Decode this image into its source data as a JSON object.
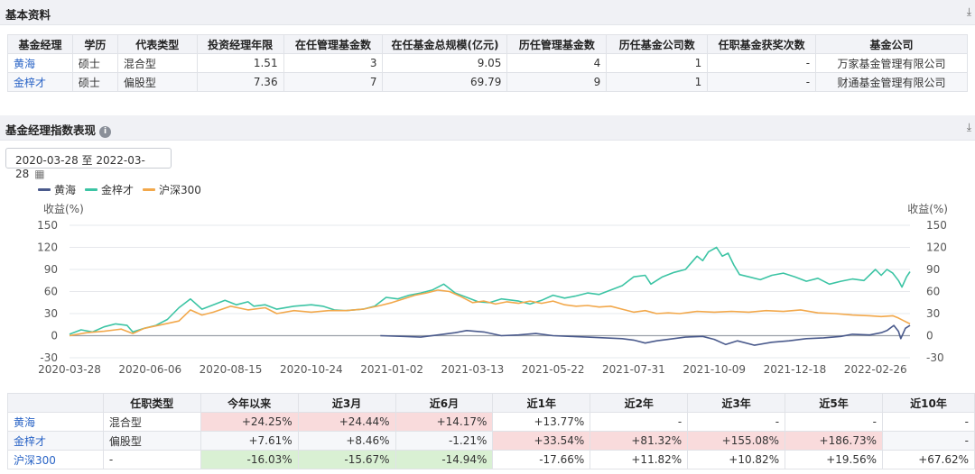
{
  "basic_section": {
    "title": "基本资料",
    "headers": [
      "基金经理",
      "学历",
      "代表类型",
      "投资经理年限",
      "在任管理基金数",
      "在任基金总规模(亿元)",
      "历任管理基金数",
      "历任基金公司数",
      "任职基金获奖次数",
      "基金公司"
    ],
    "rows": [
      [
        "黄海",
        "硕士",
        "混合型",
        "1.51",
        "3",
        "9.05",
        "4",
        "1",
        "-",
        "万家基金管理有限公司"
      ],
      [
        "金梓才",
        "硕士",
        "偏股型",
        "7.36",
        "7",
        "69.79",
        "9",
        "1",
        "-",
        "财通基金管理有限公司"
      ]
    ]
  },
  "index_section": {
    "title": "基金经理指数表现",
    "date_range": "2020-03-28 至 2022-03-28"
  },
  "chart_data": {
    "type": "line",
    "ylabel_left": "收益(%)",
    "ylabel_right": "收益(%)",
    "ylim": [
      -30,
      150
    ],
    "yticks": [
      150,
      120,
      90,
      60,
      30,
      0,
      -30
    ],
    "xticks": [
      "2020-03-28",
      "2020-06-06",
      "2020-08-15",
      "2020-10-24",
      "2021-01-02",
      "2021-03-13",
      "2021-05-22",
      "2021-07-31",
      "2021-10-09",
      "2021-12-18",
      "2022-02-26"
    ],
    "xticks_index": [
      0,
      70,
      140,
      210,
      280,
      350,
      420,
      490,
      560,
      630,
      700
    ],
    "x_range_index": [
      0,
      730
    ],
    "legend_position": "top-left",
    "series": [
      {
        "name": "黄海",
        "color": "#4a5a8c",
        "points": [
          [
            270,
            0
          ],
          [
            290,
            -1
          ],
          [
            305,
            -2
          ],
          [
            320,
            1
          ],
          [
            335,
            4
          ],
          [
            345,
            7
          ],
          [
            360,
            5
          ],
          [
            375,
            0
          ],
          [
            390,
            1
          ],
          [
            405,
            3
          ],
          [
            420,
            0
          ],
          [
            435,
            -1
          ],
          [
            450,
            -2
          ],
          [
            465,
            -3
          ],
          [
            480,
            -4
          ],
          [
            490,
            -6
          ],
          [
            500,
            -10
          ],
          [
            510,
            -7
          ],
          [
            520,
            -5
          ],
          [
            535,
            -2
          ],
          [
            550,
            -1
          ],
          [
            560,
            -5
          ],
          [
            570,
            -12
          ],
          [
            580,
            -7
          ],
          [
            595,
            -13
          ],
          [
            610,
            -9
          ],
          [
            625,
            -7
          ],
          [
            640,
            -4
          ],
          [
            655,
            -3
          ],
          [
            670,
            -1
          ],
          [
            680,
            2
          ],
          [
            695,
            1
          ],
          [
            705,
            4
          ],
          [
            710,
            7
          ],
          [
            716,
            14
          ],
          [
            720,
            6
          ],
          [
            722,
            -4
          ],
          [
            726,
            10
          ],
          [
            730,
            14
          ]
        ]
      },
      {
        "name": "金梓才",
        "color": "#3cc4a4",
        "points": [
          [
            0,
            2
          ],
          [
            10,
            8
          ],
          [
            20,
            5
          ],
          [
            30,
            12
          ],
          [
            40,
            16
          ],
          [
            50,
            14
          ],
          [
            55,
            5
          ],
          [
            65,
            10
          ],
          [
            75,
            14
          ],
          [
            85,
            22
          ],
          [
            95,
            38
          ],
          [
            105,
            50
          ],
          [
            115,
            36
          ],
          [
            125,
            42
          ],
          [
            135,
            48
          ],
          [
            145,
            42
          ],
          [
            155,
            46
          ],
          [
            160,
            40
          ],
          [
            170,
            42
          ],
          [
            180,
            36
          ],
          [
            195,
            40
          ],
          [
            210,
            42
          ],
          [
            220,
            40
          ],
          [
            230,
            35
          ],
          [
            240,
            34
          ],
          [
            255,
            36
          ],
          [
            265,
            40
          ],
          [
            275,
            52
          ],
          [
            285,
            50
          ],
          [
            295,
            55
          ],
          [
            305,
            58
          ],
          [
            315,
            62
          ],
          [
            325,
            70
          ],
          [
            335,
            58
          ],
          [
            345,
            52
          ],
          [
            355,
            46
          ],
          [
            365,
            45
          ],
          [
            375,
            50
          ],
          [
            390,
            47
          ],
          [
            400,
            43
          ],
          [
            410,
            48
          ],
          [
            420,
            55
          ],
          [
            430,
            51
          ],
          [
            440,
            54
          ],
          [
            450,
            58
          ],
          [
            460,
            56
          ],
          [
            470,
            62
          ],
          [
            480,
            68
          ],
          [
            490,
            80
          ],
          [
            500,
            82
          ],
          [
            505,
            70
          ],
          [
            515,
            80
          ],
          [
            525,
            86
          ],
          [
            535,
            90
          ],
          [
            545,
            108
          ],
          [
            550,
            102
          ],
          [
            555,
            114
          ],
          [
            562,
            120
          ],
          [
            567,
            108
          ],
          [
            572,
            112
          ],
          [
            577,
            96
          ],
          [
            582,
            83
          ],
          [
            590,
            80
          ],
          [
            600,
            76
          ],
          [
            610,
            82
          ],
          [
            620,
            85
          ],
          [
            630,
            80
          ],
          [
            640,
            74
          ],
          [
            650,
            78
          ],
          [
            660,
            70
          ],
          [
            670,
            74
          ],
          [
            680,
            77
          ],
          [
            690,
            75
          ],
          [
            700,
            90
          ],
          [
            705,
            82
          ],
          [
            710,
            90
          ],
          [
            715,
            85
          ],
          [
            720,
            75
          ],
          [
            723,
            66
          ],
          [
            727,
            80
          ],
          [
            730,
            87
          ]
        ]
      },
      {
        "name": "沪深300",
        "color": "#f2a84b",
        "points": [
          [
            0,
            0
          ],
          [
            15,
            4
          ],
          [
            30,
            6
          ],
          [
            45,
            9
          ],
          [
            55,
            3
          ],
          [
            65,
            10
          ],
          [
            80,
            15
          ],
          [
            95,
            20
          ],
          [
            105,
            35
          ],
          [
            115,
            28
          ],
          [
            125,
            32
          ],
          [
            140,
            40
          ],
          [
            155,
            35
          ],
          [
            170,
            38
          ],
          [
            180,
            30
          ],
          [
            195,
            34
          ],
          [
            210,
            32
          ],
          [
            225,
            34
          ],
          [
            240,
            34
          ],
          [
            255,
            36
          ],
          [
            270,
            41
          ],
          [
            280,
            45
          ],
          [
            290,
            50
          ],
          [
            300,
            55
          ],
          [
            310,
            58
          ],
          [
            320,
            62
          ],
          [
            330,
            60
          ],
          [
            340,
            53
          ],
          [
            350,
            45
          ],
          [
            360,
            47
          ],
          [
            370,
            43
          ],
          [
            380,
            46
          ],
          [
            390,
            44
          ],
          [
            400,
            47
          ],
          [
            410,
            44
          ],
          [
            420,
            47
          ],
          [
            430,
            42
          ],
          [
            440,
            40
          ],
          [
            450,
            41
          ],
          [
            460,
            39
          ],
          [
            470,
            40
          ],
          [
            480,
            36
          ],
          [
            490,
            32
          ],
          [
            500,
            34
          ],
          [
            510,
            30
          ],
          [
            520,
            31
          ],
          [
            530,
            30
          ],
          [
            545,
            33
          ],
          [
            560,
            32
          ],
          [
            575,
            33
          ],
          [
            590,
            32
          ],
          [
            605,
            34
          ],
          [
            620,
            33
          ],
          [
            635,
            35
          ],
          [
            650,
            31
          ],
          [
            665,
            30
          ],
          [
            680,
            28
          ],
          [
            695,
            27
          ],
          [
            705,
            26
          ],
          [
            715,
            27
          ],
          [
            720,
            24
          ],
          [
            725,
            20
          ],
          [
            730,
            16
          ]
        ]
      }
    ]
  },
  "perf_table": {
    "headers": [
      "",
      "任职类型",
      "今年以来",
      "近3月",
      "近6月",
      "近1年",
      "近2年",
      "近3年",
      "近5年",
      "近10年"
    ],
    "rows": [
      {
        "cells": [
          "黄海",
          "混合型",
          "+24.25%",
          "+24.44%",
          "+14.17%",
          "+13.77%",
          "-",
          "-",
          "-",
          "-"
        ],
        "tone": [
          "",
          "",
          "pos",
          "pos",
          "pos",
          "",
          "",
          "",
          "",
          ""
        ]
      },
      {
        "cells": [
          "金梓才",
          "偏股型",
          "+7.61%",
          "+8.46%",
          "-1.21%",
          "+33.54%",
          "+81.32%",
          "+155.08%",
          "+186.73%",
          "-"
        ],
        "tone": [
          "",
          "",
          "",
          "",
          "",
          "pos",
          "pos",
          "pos",
          "pos",
          ""
        ]
      },
      {
        "cells": [
          "沪深300",
          "-",
          "-16.03%",
          "-15.67%",
          "-14.94%",
          "-17.66%",
          "+11.82%",
          "+10.82%",
          "+19.56%",
          "+67.62%"
        ],
        "tone": [
          "",
          "",
          "neg",
          "neg",
          "neg",
          "",
          "",
          "",
          "",
          ""
        ]
      }
    ]
  },
  "icons": {
    "export": "export-icon",
    "info": "info-icon",
    "calendar": "calendar-icon"
  }
}
